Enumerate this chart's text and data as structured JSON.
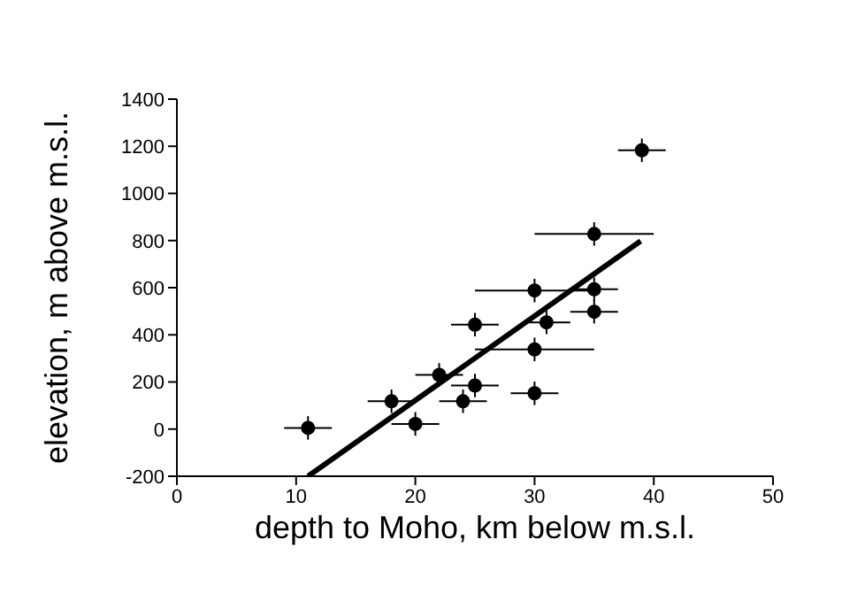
{
  "chart_data": {
    "type": "scatter",
    "xlabel": "depth to Moho, km below m.s.l.",
    "ylabel": "elevation, m above m.s.l.",
    "xlim": [
      0,
      50
    ],
    "xticks": [
      0,
      10,
      20,
      30,
      40,
      50
    ],
    "ylim": [
      -200,
      1400
    ],
    "yticks": [
      -200,
      0,
      200,
      400,
      600,
      800,
      1000,
      1200,
      1400
    ],
    "grid": false,
    "legend": false,
    "marker": "circle",
    "series": [
      {
        "type": "scatter",
        "color": "#000000",
        "x": [
          11,
          18,
          20,
          22,
          24,
          25,
          25,
          30,
          30,
          30,
          31,
          35,
          35,
          35,
          39
        ],
        "values": [
          5,
          118,
          22,
          230,
          118,
          185,
          443,
          152,
          338,
          588,
          453,
          498,
          593,
          828,
          1183
        ],
        "errors": [
          50,
          50,
          50,
          50,
          50,
          50,
          50,
          50,
          50,
          50,
          50,
          50,
          50,
          50,
          50
        ],
        "xerrors": [
          2,
          2,
          2,
          2,
          2,
          2,
          2,
          2,
          5,
          5,
          2,
          2,
          2,
          5,
          2
        ]
      },
      {
        "type": "line",
        "color": "#000000",
        "marker": "none",
        "x": [
          11,
          38.9
        ],
        "values": [
          -200,
          798
        ]
      }
    ]
  }
}
